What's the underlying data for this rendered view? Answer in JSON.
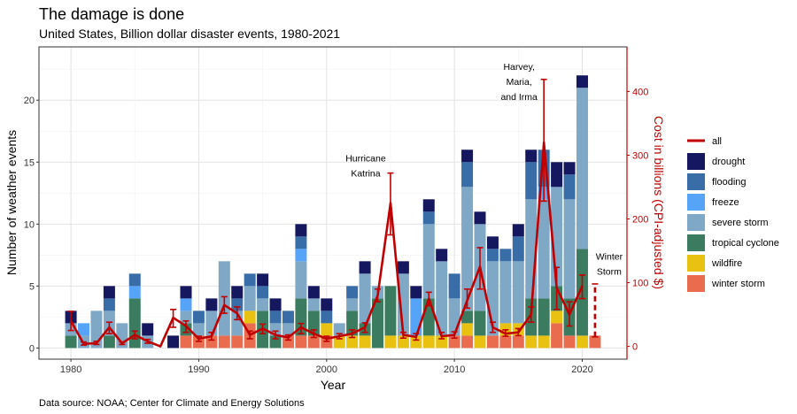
{
  "chart_data": {
    "type": "bar",
    "title": "The damage is done",
    "subtitle": "United States, Billion dollar disaster events, 1980-2021",
    "xlabel": "Year",
    "ylabel": "Number of weather events",
    "y2label": "Cost in billions (CPI-adjusted $)",
    "caption": "Data source: NOAA; Center for Climate and Energy Solutions",
    "xlim": [
      1977.5,
      2023.5
    ],
    "ylim": [
      -0.9,
      24.3
    ],
    "y2lim": [
      -20,
      470
    ],
    "x_ticks": [
      1980,
      1990,
      2000,
      2010,
      2020
    ],
    "y_ticks": [
      0,
      5,
      10,
      15,
      20
    ],
    "y2_ticks": [
      0,
      100,
      200,
      300,
      400
    ],
    "grid": true,
    "legend_position": "right",
    "categories": [
      "drought",
      "flooding",
      "freeze",
      "severe storm",
      "tropical cyclone",
      "wildfire",
      "winter storm"
    ],
    "colors": {
      "drought": "#15175f",
      "flooding": "#386da8",
      "freeze": "#56a4f7",
      "severe storm": "#7fa8c7",
      "tropical cyclone": "#3b7b5f",
      "wildfire": "#e8c111",
      "winter storm": "#ea6c4f",
      "all": "#c00000"
    },
    "legend": [
      "all",
      "drought",
      "flooding",
      "freeze",
      "severe storm",
      "tropical cyclone",
      "wildfire",
      "winter storm"
    ],
    "events": [
      {
        "year": 1980,
        "tropical cyclone": 1,
        "severe storm": 1,
        "drought": 1
      },
      {
        "year": 1981,
        "freeze": 1,
        "severe storm": 1
      },
      {
        "year": 1982,
        "severe storm": 3
      },
      {
        "year": 1983,
        "tropical cyclone": 1,
        "severe storm": 2,
        "flooding": 1,
        "drought": 1
      },
      {
        "year": 1984,
        "severe storm": 2
      },
      {
        "year": 1985,
        "tropical cyclone": 4,
        "freeze": 1,
        "flooding": 1
      },
      {
        "year": 1986,
        "severe storm": 1,
        "drought": 1
      },
      {
        "year": 1988,
        "drought": 1
      },
      {
        "year": 1989,
        "winter storm": 1,
        "tropical cyclone": 1,
        "severe storm": 1,
        "freeze": 1,
        "drought": 1
      },
      {
        "year": 1990,
        "winter storm": 1,
        "severe storm": 1,
        "flooding": 1
      },
      {
        "year": 1991,
        "winter storm": 1,
        "severe storm": 2,
        "drought": 1
      },
      {
        "year": 1992,
        "winter storm": 1,
        "severe storm": 6
      },
      {
        "year": 1993,
        "winter storm": 1,
        "severe storm": 2,
        "flooding": 1,
        "drought": 1
      },
      {
        "year": 1994,
        "wildfire": 1,
        "winter storm": 2,
        "severe storm": 2,
        "flooding": 1
      },
      {
        "year": 1995,
        "tropical cyclone": 3,
        "severe storm": 1,
        "flooding": 1,
        "drought": 1
      },
      {
        "year": 1996,
        "tropical cyclone": 1,
        "severe storm": 1,
        "flooding": 1,
        "drought": 1
      },
      {
        "year": 1997,
        "winter storm": 1,
        "severe storm": 1,
        "flooding": 1
      },
      {
        "year": 1998,
        "winter storm": 1,
        "tropical cyclone": 3,
        "severe storm": 3,
        "freeze": 1,
        "flooding": 1,
        "drought": 1
      },
      {
        "year": 1999,
        "winter storm": 1,
        "tropical cyclone": 2,
        "severe storm": 1,
        "drought": 1
      },
      {
        "year": 2000,
        "wildfire": 1,
        "winter storm": 1,
        "flooding": 1,
        "drought": 1
      },
      {
        "year": 2001,
        "wildfire": 1,
        "severe storm": 1
      },
      {
        "year": 2002,
        "wildfire": 1,
        "tropical cyclone": 2,
        "severe storm": 1,
        "flooding": 1
      },
      {
        "year": 2003,
        "wildfire": 1,
        "tropical cyclone": 1,
        "severe storm": 4,
        "drought": 1
      },
      {
        "year": 2004,
        "tropical cyclone": 4,
        "severe storm": 1
      },
      {
        "year": 2005,
        "wildfire": 1,
        "tropical cyclone": 4
      },
      {
        "year": 2006,
        "wildfire": 1,
        "severe storm": 5,
        "drought": 1
      },
      {
        "year": 2007,
        "wildfire": 1,
        "freeze": 3,
        "drought": 1
      },
      {
        "year": 2008,
        "wildfire": 1,
        "tropical cyclone": 3,
        "severe storm": 6,
        "flooding": 1,
        "drought": 1
      },
      {
        "year": 2009,
        "wildfire": 1,
        "severe storm": 6,
        "drought": 1
      },
      {
        "year": 2010,
        "winter storm": 1,
        "severe storm": 3,
        "flooding": 2
      },
      {
        "year": 2011,
        "wildfire": 1,
        "winter storm": 1,
        "tropical cyclone": 1,
        "severe storm": 10,
        "flooding": 2,
        "drought": 1
      },
      {
        "year": 2012,
        "wildfire": 1,
        "tropical cyclone": 2,
        "severe storm": 7,
        "drought": 1
      },
      {
        "year": 2013,
        "winter storm": 1,
        "severe storm": 6,
        "flooding": 1,
        "drought": 1
      },
      {
        "year": 2014,
        "wildfire": 1,
        "winter storm": 1,
        "severe storm": 5,
        "flooding": 1
      },
      {
        "year": 2015,
        "wildfire": 1,
        "winter storm": 1,
        "severe storm": 5,
        "flooding": 2,
        "drought": 1
      },
      {
        "year": 2016,
        "wildfire": 1,
        "tropical cyclone": 3,
        "severe storm": 8,
        "flooding": 3,
        "drought": 1
      },
      {
        "year": 2017,
        "wildfire": 1,
        "tropical cyclone": 3,
        "severe storm": 8,
        "flooding": 3,
        "freeze": 1
      },
      {
        "year": 2018,
        "wildfire": 1,
        "winter storm": 2,
        "tropical cyclone": 2,
        "severe storm": 8,
        "drought": 2
      },
      {
        "year": 2019,
        "winter storm": 1,
        "tropical cyclone": 3,
        "severe storm": 8,
        "flooding": 2,
        "drought": 1
      },
      {
        "year": 2020,
        "wildfire": 1,
        "tropical cyclone": 7,
        "severe storm": 13,
        "drought": 1
      },
      {
        "year": 2021,
        "winter storm": 1
      }
    ],
    "cost": [
      {
        "year": 1980,
        "value": 40,
        "low": 25,
        "high": 55
      },
      {
        "year": 1981,
        "value": 4,
        "low": 2,
        "high": 7
      },
      {
        "year": 1982,
        "value": 5,
        "low": 3,
        "high": 8
      },
      {
        "year": 1983,
        "value": 30,
        "low": 20,
        "high": 38
      },
      {
        "year": 1984,
        "value": 5,
        "low": 3,
        "high": 7
      },
      {
        "year": 1985,
        "value": 18,
        "low": 12,
        "high": 24
      },
      {
        "year": 1986,
        "value": 8,
        "low": 5,
        "high": 11
      },
      {
        "year": 1987,
        "value": 0,
        "low": 0,
        "high": 0
      },
      {
        "year": 1988,
        "value": 45,
        "low": 30,
        "high": 58
      },
      {
        "year": 1989,
        "value": 32,
        "low": 22,
        "high": 40
      },
      {
        "year": 1990,
        "value": 12,
        "low": 8,
        "high": 16
      },
      {
        "year": 1991,
        "value": 16,
        "low": 10,
        "high": 22
      },
      {
        "year": 1992,
        "value": 65,
        "low": 52,
        "high": 78
      },
      {
        "year": 1993,
        "value": 52,
        "low": 42,
        "high": 62
      },
      {
        "year": 1994,
        "value": 18,
        "low": 12,
        "high": 24
      },
      {
        "year": 1995,
        "value": 28,
        "low": 20,
        "high": 35
      },
      {
        "year": 1996,
        "value": 18,
        "low": 12,
        "high": 24
      },
      {
        "year": 1997,
        "value": 14,
        "low": 10,
        "high": 18
      },
      {
        "year": 1998,
        "value": 30,
        "low": 20,
        "high": 36
      },
      {
        "year": 1999,
        "value": 20,
        "low": 14,
        "high": 26
      },
      {
        "year": 2000,
        "value": 12,
        "low": 8,
        "high": 16
      },
      {
        "year": 2001,
        "value": 16,
        "low": 12,
        "high": 20
      },
      {
        "year": 2002,
        "value": 20,
        "low": 14,
        "high": 26
      },
      {
        "year": 2003,
        "value": 30,
        "low": 22,
        "high": 37
      },
      {
        "year": 2004,
        "value": 80,
        "low": 70,
        "high": 90
      },
      {
        "year": 2005,
        "value": 225,
        "low": 175,
        "high": 272
      },
      {
        "year": 2006,
        "value": 18,
        "low": 13,
        "high": 22
      },
      {
        "year": 2007,
        "value": 15,
        "low": 10,
        "high": 20
      },
      {
        "year": 2008,
        "value": 75,
        "low": 64,
        "high": 85
      },
      {
        "year": 2009,
        "value": 16,
        "low": 12,
        "high": 22
      },
      {
        "year": 2010,
        "value": 18,
        "low": 13,
        "high": 23
      },
      {
        "year": 2011,
        "value": 72,
        "low": 60,
        "high": 90
      },
      {
        "year": 2012,
        "value": 125,
        "low": 90,
        "high": 155
      },
      {
        "year": 2013,
        "value": 30,
        "low": 22,
        "high": 38
      },
      {
        "year": 2014,
        "value": 20,
        "low": 16,
        "high": 26
      },
      {
        "year": 2015,
        "value": 22,
        "low": 17,
        "high": 28
      },
      {
        "year": 2016,
        "value": 50,
        "low": 38,
        "high": 62
      },
      {
        "year": 2017,
        "value": 320,
        "low": 228,
        "high": 419
      },
      {
        "year": 2018,
        "value": 92,
        "low": 58,
        "high": 124
      },
      {
        "year": 2019,
        "value": 50,
        "low": 32,
        "high": 70
      },
      {
        "year": 2020,
        "value": 95,
        "low": 75,
        "high": 112
      },
      {
        "year": 2021,
        "value": 15,
        "low": 15,
        "high": 98
      }
    ],
    "annotations": [
      {
        "lines": [
          "Hurricane",
          "Katrina"
        ],
        "year": 2005,
        "value": 290
      },
      {
        "lines": [
          "Harvey,",
          "Maria,",
          "and Irma"
        ],
        "year": 2017,
        "value": 434
      },
      {
        "lines": [
          "Winter",
          "Storm"
        ],
        "year": 2021,
        "value": 136
      }
    ]
  }
}
